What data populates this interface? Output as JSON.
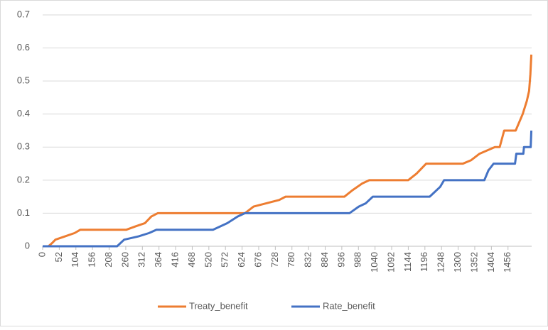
{
  "chart_data": {
    "type": "line",
    "xlim": [
      0,
      1530
    ],
    "ylim": [
      0,
      0.7
    ],
    "xticks": [
      0,
      52,
      104,
      156,
      208,
      260,
      312,
      364,
      416,
      468,
      520,
      572,
      624,
      676,
      728,
      780,
      832,
      884,
      936,
      988,
      1040,
      1092,
      1144,
      1196,
      1248,
      1300,
      1352,
      1404,
      1456
    ],
    "yticks": [
      0,
      0.1,
      0.2,
      0.3,
      0.4,
      0.5,
      0.6,
      0.7
    ],
    "grid": true,
    "legend": "bottom",
    "series": [
      {
        "name": "Treaty_benefit",
        "color": "#ed7d31",
        "x": [
          0,
          18,
          30,
          40,
          70,
          100,
          118,
          262,
          290,
          320,
          340,
          360,
          633,
          660,
          700,
          740,
          760,
          944,
          970,
          1000,
          1022,
          1144,
          1170,
          1200,
          1315,
          1340,
          1367,
          1415,
          1430,
          1444,
          1480,
          1502,
          1515,
          1522,
          1526,
          1529
        ],
        "values": [
          0,
          0,
          0.01,
          0.02,
          0.03,
          0.04,
          0.05,
          0.05,
          0.06,
          0.07,
          0.09,
          0.1,
          0.1,
          0.12,
          0.13,
          0.14,
          0.15,
          0.15,
          0.17,
          0.19,
          0.2,
          0.2,
          0.22,
          0.25,
          0.25,
          0.26,
          0.28,
          0.3,
          0.3,
          0.35,
          0.35,
          0.4,
          0.44,
          0.47,
          0.52,
          0.58
        ]
      },
      {
        "name": "Rate_benefit",
        "color": "#4472c4",
        "x": [
          0,
          233,
          255,
          300,
          333,
          356,
          533,
          578,
          610,
          633,
          960,
          989,
          1011,
          1033,
          1211,
          1222,
          1244,
          1256,
          1382,
          1395,
          1411,
          1478,
          1482,
          1504,
          1506,
          1527,
          1529
        ],
        "values": [
          0,
          0,
          0.02,
          0.03,
          0.04,
          0.05,
          0.05,
          0.07,
          0.09,
          0.1,
          0.1,
          0.12,
          0.13,
          0.15,
          0.15,
          0.16,
          0.18,
          0.2,
          0.2,
          0.23,
          0.25,
          0.25,
          0.28,
          0.28,
          0.3,
          0.3,
          0.35
        ]
      }
    ]
  }
}
